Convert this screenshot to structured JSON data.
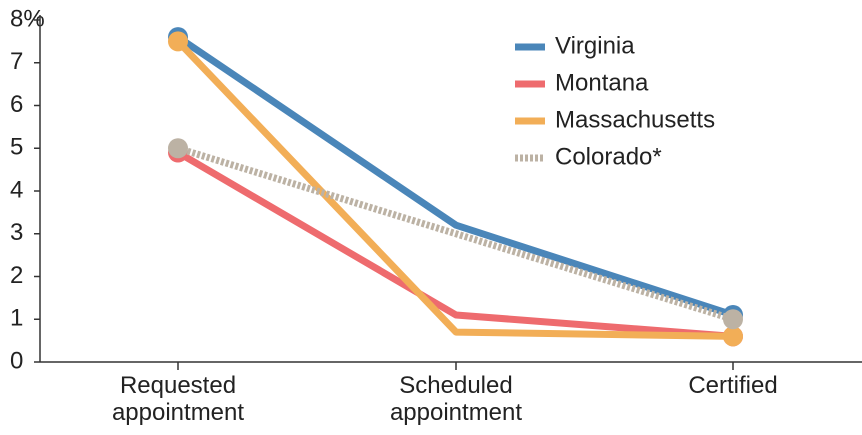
{
  "chart_data": {
    "type": "line",
    "categories": [
      "Requested appointment",
      "Scheduled appointment",
      "Certified"
    ],
    "series": [
      {
        "name": "Virginia",
        "color": "#4a86b9",
        "values": [
          7.6,
          3.2,
          1.1
        ]
      },
      {
        "name": "Montana",
        "color": "#ee6b6e",
        "values": [
          4.9,
          1.1,
          0.6
        ]
      },
      {
        "name": "Massachusetts",
        "color": "#f2ae57",
        "values": [
          7.5,
          0.7,
          0.6
        ]
      },
      {
        "name": "Colorado*",
        "color": "#bcb2a4",
        "values": [
          5.0,
          3.0,
          1.0
        ]
      }
    ],
    "ylim": [
      0,
      8
    ],
    "yticks": [
      0,
      1,
      2,
      3,
      4,
      5,
      6,
      7,
      {
        "value": 8,
        "label": "8%"
      }
    ],
    "legend": "upper right"
  }
}
